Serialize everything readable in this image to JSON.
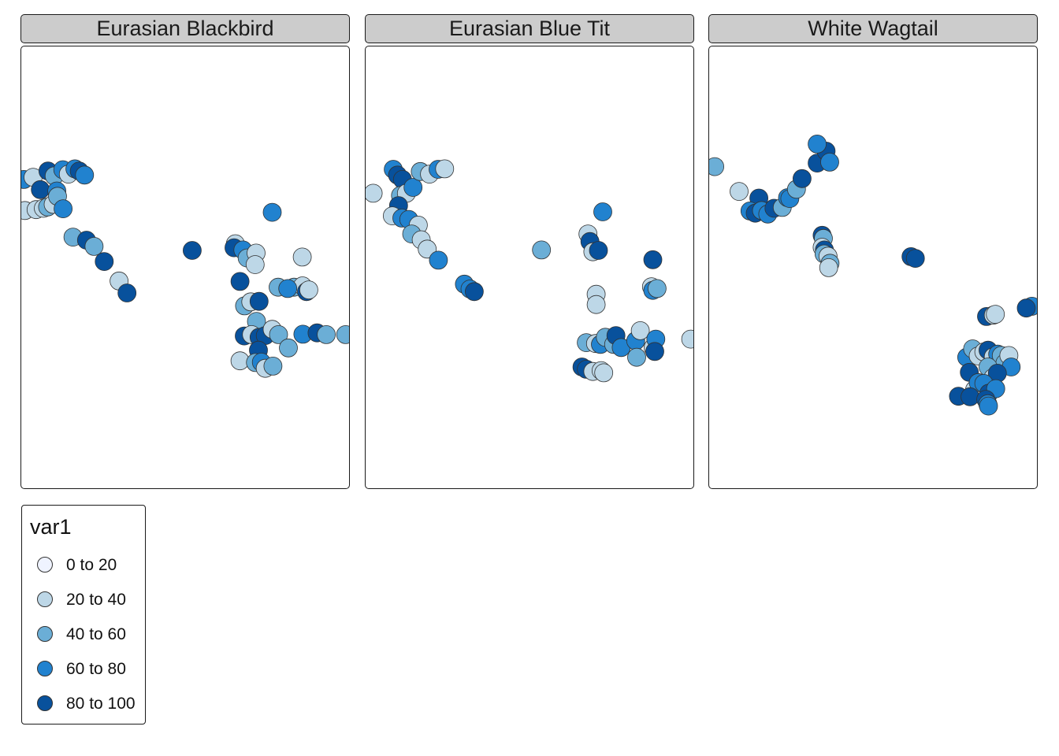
{
  "chart_data": {
    "type": "scatter",
    "legend": {
      "title": "var1",
      "placement": "bottom-left",
      "classes": [
        {
          "label": "0 to 20",
          "color": "#eff3ff"
        },
        {
          "label": "20 to 40",
          "color": "#bdd7e7"
        },
        {
          "label": "40 to 60",
          "color": "#6baed6"
        },
        {
          "label": "60 to 80",
          "color": "#2182cf"
        },
        {
          "label": "80 to 100",
          "color": "#08519c"
        }
      ]
    },
    "point_style": {
      "stroke": "#333333",
      "opacity": 1
    },
    "facets": [
      {
        "title": "Eurasian Blackbird",
        "points": [
          [
            0.008,
            0.3,
            3
          ],
          [
            0.036,
            0.295,
            1
          ],
          [
            0.058,
            0.323,
            4
          ],
          [
            0.081,
            0.281,
            4
          ],
          [
            0.1,
            0.292,
            2
          ],
          [
            0.108,
            0.326,
            3
          ],
          [
            0.126,
            0.278,
            3
          ],
          [
            0.143,
            0.288,
            1
          ],
          [
            0.163,
            0.276,
            3
          ],
          [
            0.176,
            0.281,
            4
          ],
          [
            0.192,
            0.29,
            3
          ],
          [
            0.011,
            0.37,
            1
          ],
          [
            0.045,
            0.368,
            1
          ],
          [
            0.067,
            0.365,
            1
          ],
          [
            0.08,
            0.362,
            2
          ],
          [
            0.097,
            0.356,
            1
          ],
          [
            0.11,
            0.338,
            2
          ],
          [
            0.127,
            0.366,
            3
          ],
          [
            0.157,
            0.43,
            2
          ],
          [
            0.198,
            0.437,
            4
          ],
          [
            0.221,
            0.451,
            2
          ],
          [
            0.252,
            0.485,
            4
          ],
          [
            0.297,
            0.529,
            1
          ],
          [
            0.321,
            0.556,
            4
          ],
          [
            0.519,
            0.46,
            4
          ],
          [
            0.65,
            0.445,
            1
          ],
          [
            0.646,
            0.454,
            4
          ],
          [
            0.673,
            0.459,
            3
          ],
          [
            0.686,
            0.477,
            2
          ],
          [
            0.713,
            0.466,
            1
          ],
          [
            0.71,
            0.492,
            1
          ],
          [
            0.762,
            0.374,
            3
          ],
          [
            0.664,
            0.53,
            4
          ],
          [
            0.678,
            0.585,
            2
          ],
          [
            0.697,
            0.576,
            1
          ],
          [
            0.722,
            0.575,
            4
          ],
          [
            0.714,
            0.62,
            2
          ],
          [
            0.828,
            0.543,
            2
          ],
          [
            0.854,
            0.54,
            1
          ],
          [
            0.866,
            0.553,
            4
          ],
          [
            0.873,
            0.549,
            1
          ],
          [
            0.78,
            0.543,
            2
          ],
          [
            0.809,
            0.546,
            3
          ],
          [
            0.853,
            0.475,
            1
          ],
          [
            0.677,
            0.653,
            4
          ],
          [
            0.699,
            0.65,
            1
          ],
          [
            0.722,
            0.656,
            4
          ],
          [
            0.741,
            0.652,
            4
          ],
          [
            0.72,
            0.685,
            4
          ],
          [
            0.762,
            0.638,
            1
          ],
          [
            0.781,
            0.65,
            2
          ],
          [
            0.811,
            0.68,
            2
          ],
          [
            0.855,
            0.649,
            3
          ],
          [
            0.898,
            0.646,
            4
          ],
          [
            0.926,
            0.65,
            2
          ],
          [
            0.985,
            0.65,
            2
          ],
          [
            0.664,
            0.709,
            1
          ],
          [
            0.711,
            0.713,
            2
          ],
          [
            0.729,
            0.712,
            3
          ],
          [
            0.741,
            0.726,
            1
          ],
          [
            0.764,
            0.721,
            2
          ]
        ]
      },
      {
        "title": "Eurasian Blue Tit",
        "points": [
          [
            0.023,
            0.331,
            1
          ],
          [
            0.084,
            0.277,
            3
          ],
          [
            0.097,
            0.29,
            4
          ],
          [
            0.112,
            0.3,
            4
          ],
          [
            0.106,
            0.336,
            2
          ],
          [
            0.124,
            0.331,
            1
          ],
          [
            0.144,
            0.318,
            3
          ],
          [
            0.166,
            0.282,
            2
          ],
          [
            0.194,
            0.288,
            1
          ],
          [
            0.22,
            0.277,
            3
          ],
          [
            0.24,
            0.276,
            1
          ],
          [
            0.1,
            0.359,
            4
          ],
          [
            0.081,
            0.382,
            1
          ],
          [
            0.11,
            0.387,
            3
          ],
          [
            0.131,
            0.39,
            3
          ],
          [
            0.16,
            0.403,
            1
          ],
          [
            0.14,
            0.423,
            2
          ],
          [
            0.169,
            0.436,
            1
          ],
          [
            0.187,
            0.457,
            1
          ],
          [
            0.221,
            0.482,
            3
          ],
          [
            0.3,
            0.536,
            3
          ],
          [
            0.317,
            0.547,
            3
          ],
          [
            0.33,
            0.553,
            4
          ],
          [
            0.534,
            0.459,
            2
          ],
          [
            0.675,
            0.423,
            1
          ],
          [
            0.681,
            0.44,
            4
          ],
          [
            0.69,
            0.463,
            1
          ],
          [
            0.707,
            0.46,
            4
          ],
          [
            0.72,
            0.373,
            3
          ],
          [
            0.872,
            0.481,
            4
          ],
          [
            0.868,
            0.542,
            1
          ],
          [
            0.872,
            0.55,
            3
          ],
          [
            0.885,
            0.546,
            2
          ],
          [
            0.7,
            0.559,
            1
          ],
          [
            0.7,
            0.582,
            1
          ],
          [
            0.67,
            0.668,
            2
          ],
          [
            0.698,
            0.67,
            1
          ],
          [
            0.713,
            0.672,
            3
          ],
          [
            0.728,
            0.656,
            2
          ],
          [
            0.753,
            0.672,
            2
          ],
          [
            0.76,
            0.652,
            4
          ],
          [
            0.776,
            0.679,
            3
          ],
          [
            0.82,
            0.664,
            3
          ],
          [
            0.834,
            0.641,
            1
          ],
          [
            0.873,
            0.679,
            1
          ],
          [
            0.881,
            0.66,
            3
          ],
          [
            0.987,
            0.66,
            1
          ],
          [
            0.657,
            0.723,
            4
          ],
          [
            0.67,
            0.728,
            4
          ],
          [
            0.69,
            0.733,
            1
          ],
          [
            0.715,
            0.731,
            1
          ],
          [
            0.723,
            0.736,
            1
          ],
          [
            0.823,
            0.701,
            2
          ],
          [
            0.878,
            0.688,
            4
          ]
        ]
      },
      {
        "title": "White Wagtail",
        "points": [
          [
            0.017,
            0.271,
            2
          ],
          [
            0.091,
            0.327,
            1
          ],
          [
            0.151,
            0.342,
            4
          ],
          [
            0.124,
            0.371,
            3
          ],
          [
            0.14,
            0.376,
            4
          ],
          [
            0.159,
            0.37,
            3
          ],
          [
            0.178,
            0.378,
            3
          ],
          [
            0.197,
            0.365,
            4
          ],
          [
            0.222,
            0.363,
            2
          ],
          [
            0.238,
            0.341,
            3
          ],
          [
            0.245,
            0.343,
            3
          ],
          [
            0.265,
            0.322,
            2
          ],
          [
            0.282,
            0.298,
            4
          ],
          [
            0.328,
            0.263,
            4
          ],
          [
            0.355,
            0.236,
            4
          ],
          [
            0.366,
            0.261,
            3
          ],
          [
            0.328,
            0.22,
            3
          ],
          [
            0.343,
            0.426,
            4
          ],
          [
            0.347,
            0.433,
            2
          ],
          [
            0.343,
            0.453,
            1
          ],
          [
            0.35,
            0.459,
            4
          ],
          [
            0.349,
            0.468,
            2
          ],
          [
            0.361,
            0.473,
            1
          ],
          [
            0.367,
            0.489,
            2
          ],
          [
            0.363,
            0.499,
            1
          ],
          [
            0.613,
            0.474,
            4
          ],
          [
            0.626,
            0.478,
            4
          ],
          [
            0.842,
            0.609,
            4
          ],
          [
            0.863,
            0.606,
            1
          ],
          [
            0.869,
            0.604,
            1
          ],
          [
            0.98,
            0.586,
            3
          ],
          [
            0.963,
            0.59,
            4
          ],
          [
            0.782,
            0.701,
            3
          ],
          [
            0.8,
            0.682,
            2
          ],
          [
            0.817,
            0.698,
            1
          ],
          [
            0.834,
            0.689,
            1
          ],
          [
            0.847,
            0.685,
            4
          ],
          [
            0.863,
            0.7,
            1
          ],
          [
            0.876,
            0.694,
            3
          ],
          [
            0.887,
            0.697,
            2
          ],
          [
            0.898,
            0.714,
            2
          ],
          [
            0.91,
            0.697,
            1
          ],
          [
            0.917,
            0.723,
            3
          ],
          [
            0.847,
            0.723,
            2
          ],
          [
            0.862,
            0.747,
            1
          ],
          [
            0.875,
            0.737,
            4
          ],
          [
            0.79,
            0.735,
            4
          ],
          [
            0.806,
            0.774,
            1
          ],
          [
            0.817,
            0.758,
            3
          ],
          [
            0.834,
            0.76,
            3
          ],
          [
            0.849,
            0.782,
            4
          ],
          [
            0.87,
            0.772,
            3
          ],
          [
            0.757,
            0.789,
            4
          ],
          [
            0.792,
            0.79,
            4
          ],
          [
            0.84,
            0.796,
            4
          ],
          [
            0.846,
            0.806,
            3
          ],
          [
            0.848,
            0.811,
            3
          ]
        ]
      }
    ]
  }
}
